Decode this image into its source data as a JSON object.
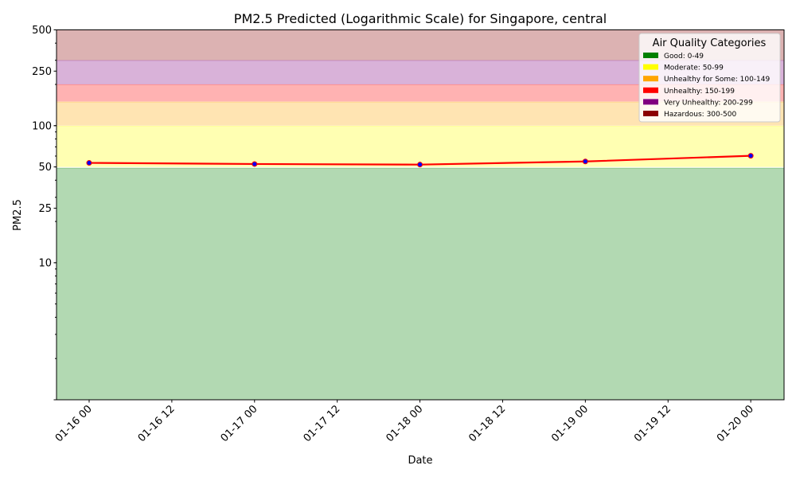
{
  "chart_data": {
    "type": "line",
    "title": "PM2.5 Predicted (Logarithmic Scale) for Singapore, central",
    "xlabel": "Date",
    "ylabel": "PM2.5",
    "yscale": "log",
    "ylim": [
      1,
      500
    ],
    "xlim": [
      "2024-01-15T19:16",
      "2024-01-20T04:50"
    ],
    "x_tick_labels": [
      "01-16 00",
      "01-16 12",
      "01-17 00",
      "01-17 12",
      "01-18 00",
      "01-18 12",
      "01-19 00",
      "01-19 12",
      "01-20 00"
    ],
    "y_ticks": [
      10,
      25,
      50,
      100,
      250,
      500
    ],
    "y_tick_labels": [
      "10",
      "25",
      "50",
      "100",
      "250",
      "500"
    ],
    "series": [
      {
        "x": [
          "01-16 00",
          "01-17 00",
          "01-18 00",
          "01-19 00",
          "01-20 00"
        ],
        "values": [
          53.5,
          52.5,
          52.0,
          54.8,
          60.3
        ],
        "line_color": "#ff0000",
        "marker_color": "#0000ff"
      }
    ],
    "legend": {
      "title": "Air Quality Categories",
      "placement": "top-right",
      "entries": [
        {
          "label": "Good: 0-49",
          "color": "#008000",
          "range": [
            1,
            49
          ]
        },
        {
          "label": "Moderate: 50-99",
          "color": "#ffff00",
          "range": [
            50,
            99
          ]
        },
        {
          "label": "Unhealthy for Some: 100-149",
          "color": "#ffa500",
          "range": [
            100,
            149
          ]
        },
        {
          "label": "Unhealthy: 150-199",
          "color": "#ff0000",
          "range": [
            150,
            199
          ]
        },
        {
          "label": "Very Unhealthy: 200-299",
          "color": "#800080",
          "range": [
            200,
            299
          ]
        },
        {
          "label": "Hazardous: 300-500",
          "color": "#8b0000",
          "range": [
            300,
            500
          ]
        }
      ]
    },
    "grid": false
  }
}
